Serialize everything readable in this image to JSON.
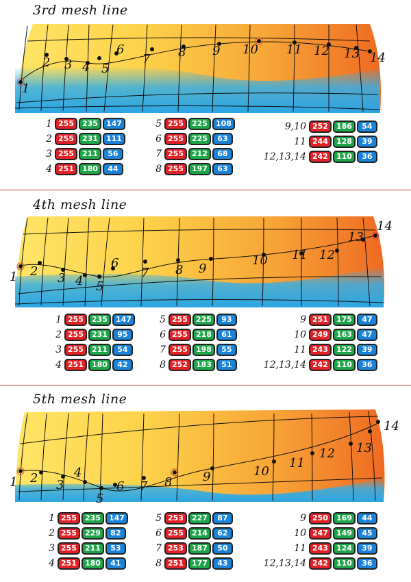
{
  "panels": [
    {
      "title": "3rd mesh line",
      "labels": [
        "1",
        "2",
        "3",
        "4",
        "5",
        "6",
        "7",
        "8",
        "9",
        "10",
        "11",
        "12",
        "13",
        "14"
      ],
      "rows": [
        {
          "label": "1",
          "r": "255",
          "g": "235",
          "b": "147"
        },
        {
          "label": "2",
          "r": "255",
          "g": "231",
          "b": "111"
        },
        {
          "label": "3",
          "r": "255",
          "g": "211",
          "b": "56"
        },
        {
          "label": "4",
          "r": "251",
          "g": "180",
          "b": "44"
        },
        {
          "label": "5",
          "r": "255",
          "g": "225",
          "b": "108"
        },
        {
          "label": "6",
          "r": "255",
          "g": "225",
          "b": "63"
        },
        {
          "label": "7",
          "r": "255",
          "g": "212",
          "b": "68"
        },
        {
          "label": "8",
          "r": "255",
          "g": "197",
          "b": "63"
        },
        {
          "label": "9,10",
          "r": "252",
          "g": "186",
          "b": "54"
        },
        {
          "label": "11",
          "r": "244",
          "g": "128",
          "b": "39"
        },
        {
          "label": "12,13,14",
          "r": "242",
          "g": "110",
          "b": "36"
        }
      ]
    },
    {
      "title": "4th mesh line",
      "labels": [
        "1",
        "2",
        "3",
        "4",
        "5",
        "6",
        "7",
        "8",
        "9",
        "10",
        "11",
        "12",
        "13",
        "14"
      ],
      "rows": [
        {
          "label": "1",
          "r": "255",
          "g": "235",
          "b": "147"
        },
        {
          "label": "2",
          "r": "255",
          "g": "231",
          "b": "95"
        },
        {
          "label": "3",
          "r": "255",
          "g": "211",
          "b": "54"
        },
        {
          "label": "4",
          "r": "251",
          "g": "180",
          "b": "42"
        },
        {
          "label": "5",
          "r": "255",
          "g": "225",
          "b": "93"
        },
        {
          "label": "6",
          "r": "255",
          "g": "218",
          "b": "61"
        },
        {
          "label": "7",
          "r": "255",
          "g": "198",
          "b": "55"
        },
        {
          "label": "8",
          "r": "252",
          "g": "183",
          "b": "51"
        },
        {
          "label": "9",
          "r": "251",
          "g": "175",
          "b": "47"
        },
        {
          "label": "10",
          "r": "249",
          "g": "163",
          "b": "47"
        },
        {
          "label": "11",
          "r": "243",
          "g": "122",
          "b": "39"
        },
        {
          "label": "12,13,14",
          "r": "242",
          "g": "110",
          "b": "36"
        }
      ]
    },
    {
      "title": "5th mesh line",
      "labels": [
        "1",
        "2",
        "3",
        "4",
        "5",
        "6",
        "7",
        "8",
        "9",
        "10",
        "11",
        "12",
        "13",
        "14"
      ],
      "rows": [
        {
          "label": "1",
          "r": "255",
          "g": "235",
          "b": "147"
        },
        {
          "label": "2",
          "r": "255",
          "g": "229",
          "b": "82"
        },
        {
          "label": "3",
          "r": "255",
          "g": "211",
          "b": "53"
        },
        {
          "label": "4",
          "r": "251",
          "g": "180",
          "b": "41"
        },
        {
          "label": "5",
          "r": "253",
          "g": "227",
          "b": "87"
        },
        {
          "label": "6",
          "r": "255",
          "g": "214",
          "b": "62"
        },
        {
          "label": "7",
          "r": "253",
          "g": "187",
          "b": "50"
        },
        {
          "label": "8",
          "r": "251",
          "g": "177",
          "b": "43"
        },
        {
          "label": "9",
          "r": "250",
          "g": "169",
          "b": "44"
        },
        {
          "label": "10",
          "r": "247",
          "g": "149",
          "b": "45"
        },
        {
          "label": "11",
          "r": "243",
          "g": "124",
          "b": "39"
        },
        {
          "label": "12,13,14",
          "r": "242",
          "g": "110",
          "b": "36"
        }
      ]
    }
  ],
  "colors": {
    "red_badge": "#e32026",
    "green_badge": "#1ea54a",
    "blue_badge": "#1a82d8",
    "divider": "#c44444"
  }
}
